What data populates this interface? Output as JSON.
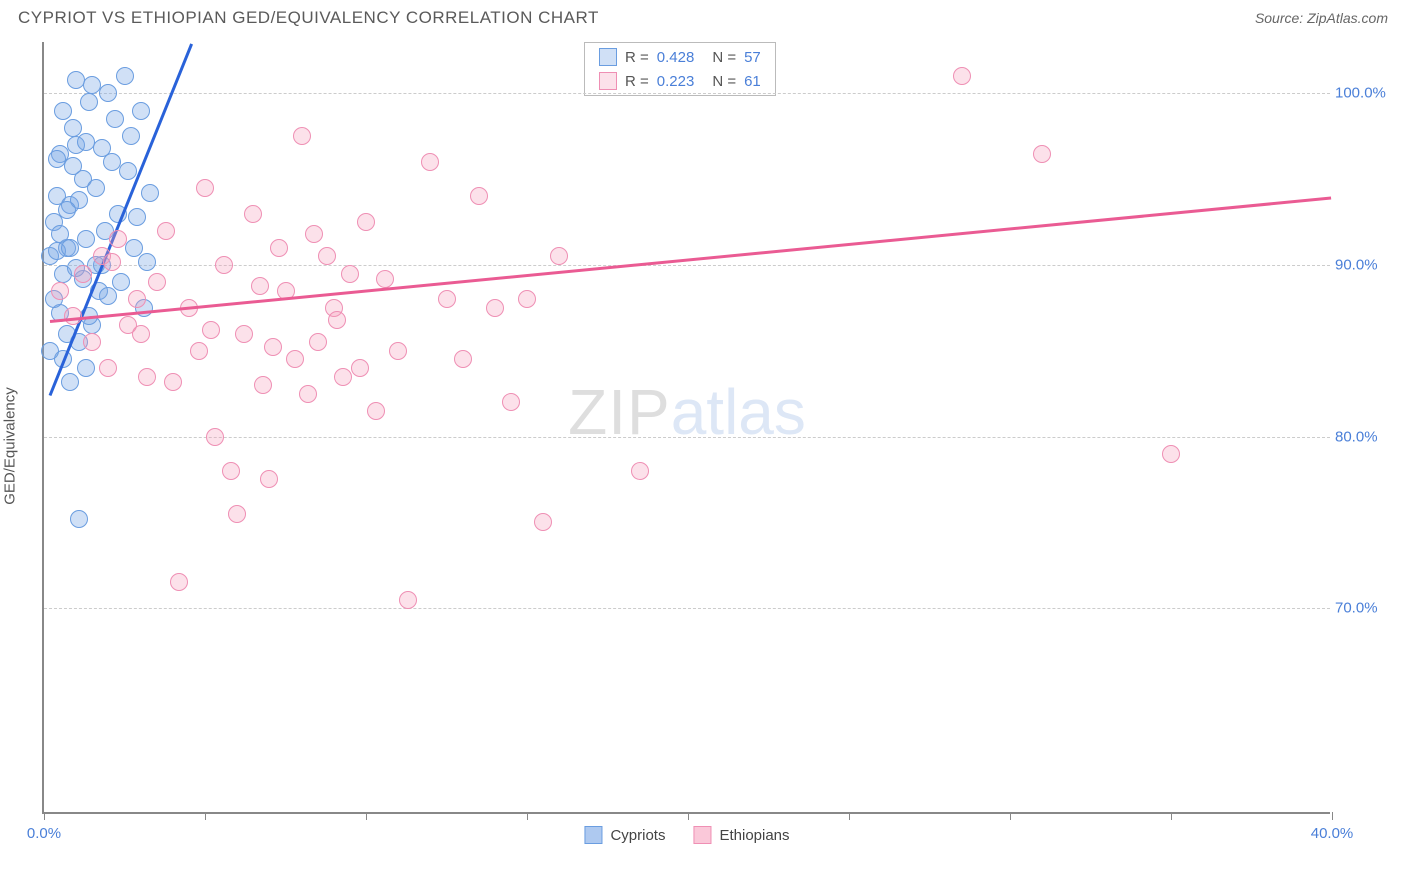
{
  "header": {
    "title": "CYPRIOT VS ETHIOPIAN GED/EQUIVALENCY CORRELATION CHART",
    "source": "Source: ZipAtlas.com"
  },
  "chart": {
    "type": "scatter",
    "ylabel": "GED/Equivalency",
    "xlim": [
      0,
      40
    ],
    "ylim": [
      58,
      103
    ],
    "xtick_positions": [
      0,
      5,
      10,
      15,
      20,
      25,
      30,
      35,
      40
    ],
    "xtick_labels": {
      "0": "0.0%",
      "40": "40.0%"
    },
    "ytick_positions": [
      70,
      80,
      90,
      100
    ],
    "ytick_labels": [
      "70.0%",
      "80.0%",
      "90.0%",
      "100.0%"
    ],
    "grid_color": "#cccccc",
    "axis_color": "#888888",
    "background_color": "#ffffff",
    "tick_label_color": "#4a7fd8",
    "series": [
      {
        "name": "Cypriots",
        "color_fill": "rgba(120,165,230,0.35)",
        "color_stroke": "#6a9de0",
        "trend_color": "#2962d9",
        "marker_radius": 9,
        "R": "0.428",
        "N": "57",
        "trend": {
          "x1": 0.2,
          "y1": 82.5,
          "x2": 4.6,
          "y2": 103
        },
        "points": [
          [
            0.2,
            90.5
          ],
          [
            0.3,
            92.5
          ],
          [
            0.4,
            94.0
          ],
          [
            0.5,
            96.5
          ],
          [
            0.6,
            89.5
          ],
          [
            0.7,
            91.0
          ],
          [
            0.8,
            93.5
          ],
          [
            0.9,
            98.0
          ],
          [
            1.0,
            97.0
          ],
          [
            1.1,
            85.5
          ],
          [
            1.2,
            95.0
          ],
          [
            1.3,
            91.5
          ],
          [
            1.4,
            99.5
          ],
          [
            1.5,
            100.5
          ],
          [
            1.6,
            94.5
          ],
          [
            1.7,
            88.5
          ],
          [
            1.8,
            90.0
          ],
          [
            1.9,
            92.0
          ],
          [
            2.0,
            100.0
          ],
          [
            2.1,
            96.0
          ],
          [
            2.2,
            98.5
          ],
          [
            2.3,
            93.0
          ],
          [
            2.4,
            89.0
          ],
          [
            2.5,
            101.0
          ],
          [
            2.6,
            95.5
          ],
          [
            2.7,
            97.5
          ],
          [
            2.8,
            91.0
          ],
          [
            2.9,
            92.8
          ],
          [
            3.0,
            99.0
          ],
          [
            3.1,
            87.5
          ],
          [
            3.2,
            90.2
          ],
          [
            3.3,
            94.2
          ],
          [
            0.5,
            87.2
          ],
          [
            0.7,
            86.0
          ],
          [
            0.4,
            90.8
          ],
          [
            1.0,
            100.8
          ],
          [
            1.2,
            89.2
          ],
          [
            1.5,
            86.5
          ],
          [
            0.6,
            84.5
          ],
          [
            0.3,
            88.0
          ],
          [
            0.8,
            83.2
          ],
          [
            1.3,
            84.0
          ],
          [
            0.2,
            85.0
          ],
          [
            0.9,
            95.8
          ],
          [
            1.1,
            93.8
          ],
          [
            1.6,
            90.0
          ],
          [
            1.8,
            96.8
          ],
          [
            2.0,
            88.2
          ],
          [
            0.5,
            91.8
          ],
          [
            0.7,
            93.2
          ],
          [
            1.0,
            89.8
          ],
          [
            1.3,
            97.2
          ],
          [
            0.4,
            96.2
          ],
          [
            0.6,
            99.0
          ],
          [
            0.8,
            91.0
          ],
          [
            1.1,
            75.2
          ],
          [
            1.4,
            87.0
          ]
        ]
      },
      {
        "name": "Ethiopians",
        "color_fill": "rgba(245,155,185,0.30)",
        "color_stroke": "#ef8fb4",
        "trend_color": "#ea5b93",
        "marker_radius": 9,
        "R": "0.223",
        "N": "61",
        "trend": {
          "x1": 0.2,
          "y1": 86.8,
          "x2": 40,
          "y2": 94.0
        },
        "points": [
          [
            0.5,
            88.5
          ],
          [
            0.9,
            87.0
          ],
          [
            1.2,
            89.5
          ],
          [
            1.5,
            85.5
          ],
          [
            1.8,
            90.5
          ],
          [
            2.0,
            84.0
          ],
          [
            2.3,
            91.5
          ],
          [
            2.6,
            86.5
          ],
          [
            2.9,
            88.0
          ],
          [
            3.2,
            83.5
          ],
          [
            3.5,
            89.0
          ],
          [
            3.8,
            92.0
          ],
          [
            4.2,
            71.5
          ],
          [
            4.5,
            87.5
          ],
          [
            4.8,
            85.0
          ],
          [
            5.0,
            94.5
          ],
          [
            5.3,
            80.0
          ],
          [
            5.6,
            90.0
          ],
          [
            5.8,
            78.0
          ],
          [
            6.0,
            75.5
          ],
          [
            6.2,
            86.0
          ],
          [
            6.5,
            93.0
          ],
          [
            6.8,
            83.0
          ],
          [
            7.0,
            77.5
          ],
          [
            7.3,
            91.0
          ],
          [
            7.5,
            88.5
          ],
          [
            7.8,
            84.5
          ],
          [
            8.0,
            97.5
          ],
          [
            8.2,
            82.5
          ],
          [
            8.5,
            85.5
          ],
          [
            8.8,
            90.5
          ],
          [
            9.0,
            87.5
          ],
          [
            9.3,
            83.5
          ],
          [
            9.5,
            89.5
          ],
          [
            9.8,
            84.0
          ],
          [
            10.0,
            92.5
          ],
          [
            10.3,
            81.5
          ],
          [
            11.0,
            85.0
          ],
          [
            11.3,
            70.5
          ],
          [
            12.0,
            96.0
          ],
          [
            12.5,
            88.0
          ],
          [
            13.0,
            84.5
          ],
          [
            13.5,
            94.0
          ],
          [
            14.0,
            87.5
          ],
          [
            14.5,
            82.0
          ],
          [
            15.0,
            88.0
          ],
          [
            15.5,
            75.0
          ],
          [
            16.0,
            90.5
          ],
          [
            18.5,
            78.0
          ],
          [
            28.5,
            101.0
          ],
          [
            31.0,
            96.5
          ],
          [
            35.0,
            79.0
          ],
          [
            5.2,
            86.2
          ],
          [
            6.7,
            88.8
          ],
          [
            7.1,
            85.2
          ],
          [
            8.4,
            91.8
          ],
          [
            9.1,
            86.8
          ],
          [
            10.6,
            89.2
          ],
          [
            2.1,
            90.2
          ],
          [
            3.0,
            86.0
          ],
          [
            4.0,
            83.2
          ]
        ]
      }
    ],
    "legend_bottom": [
      {
        "label": "Cypriots",
        "fill": "rgba(120,165,230,0.6)",
        "stroke": "#6a9de0"
      },
      {
        "label": "Ethiopians",
        "fill": "rgba(245,155,185,0.55)",
        "stroke": "#ef8fb4"
      }
    ]
  },
  "watermark": {
    "part1": "ZIP",
    "part2": "atlas"
  }
}
